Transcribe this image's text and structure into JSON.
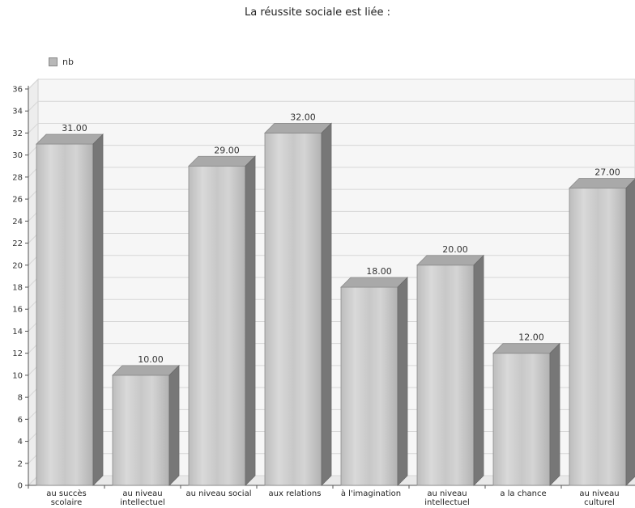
{
  "chart_data": {
    "type": "bar",
    "title": "La réussite sociale est liée  :",
    "legend": [
      "nb"
    ],
    "legend_position": "top-left",
    "categories": [
      "au succès scolaire",
      "au niveau intellectuel",
      "au niveau social",
      "aux relations",
      "à l'imagination",
      "au niveau intellectuel",
      "a la chance",
      "au niveau culturel"
    ],
    "series": [
      {
        "name": "nb",
        "values": [
          31,
          10,
          29,
          32,
          18,
          20,
          12,
          27
        ]
      }
    ],
    "value_labels": [
      "31.00",
      "10.00",
      "29.00",
      "32.00",
      "18.00",
      "20.00",
      "12.00",
      "27.00"
    ],
    "ylim": [
      0,
      36
    ],
    "yticks": [
      0,
      2,
      4,
      6,
      8,
      10,
      12,
      14,
      16,
      18,
      20,
      22,
      24,
      26,
      28,
      30,
      32,
      34,
      36
    ],
    "grid": true,
    "colors": {
      "bar_front": "#cccccc",
      "bar_top": "#a9a9a9",
      "bar_side": "#777777",
      "grid": "#d6d6d6",
      "plot_bg": "#f6f6f6"
    }
  }
}
